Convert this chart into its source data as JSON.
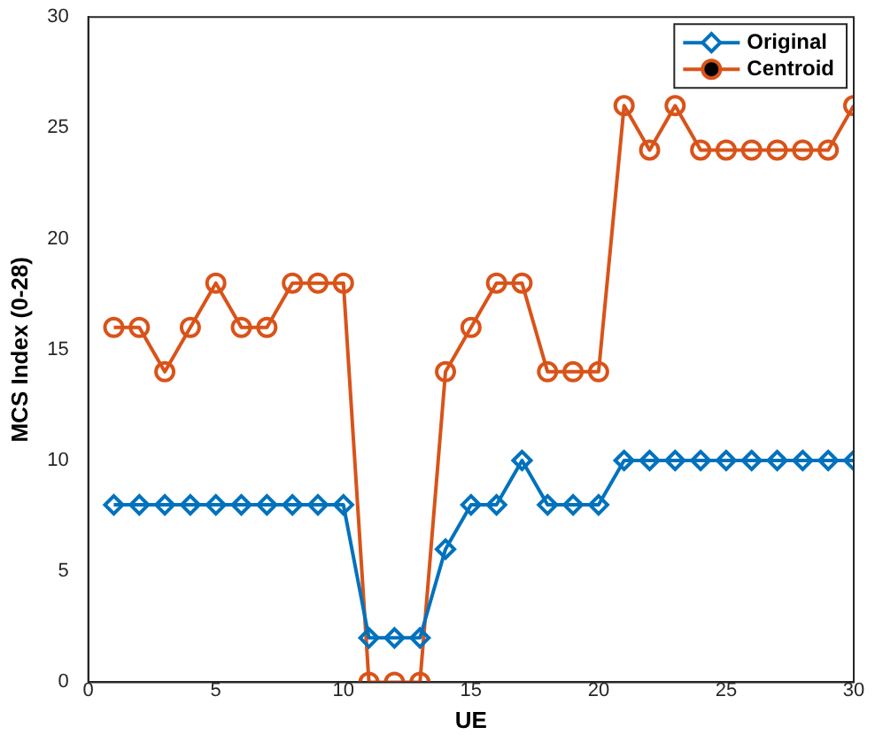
{
  "chart_data": {
    "type": "line",
    "xlabel": "UE",
    "ylabel": "MCS Index (0-28)",
    "x": [
      1,
      2,
      3,
      4,
      5,
      6,
      7,
      8,
      9,
      10,
      11,
      12,
      13,
      14,
      15,
      16,
      17,
      18,
      19,
      20,
      21,
      22,
      23,
      24,
      25,
      26,
      27,
      28,
      29,
      30
    ],
    "series": [
      {
        "name": "Original",
        "color": "#0072bd",
        "marker": "diamond",
        "values": [
          8,
          8,
          8,
          8,
          8,
          8,
          8,
          8,
          8,
          8,
          2,
          2,
          2,
          6,
          8,
          8,
          10,
          8,
          8,
          8,
          10,
          10,
          10,
          10,
          10,
          10,
          10,
          10,
          10,
          10
        ]
      },
      {
        "name": "Centroid",
        "color": "#d95319",
        "marker": "circle",
        "values": [
          16,
          16,
          14,
          16,
          18,
          16,
          16,
          18,
          18,
          18,
          0,
          0,
          0,
          14,
          16,
          18,
          18,
          14,
          14,
          14,
          26,
          24,
          26,
          24,
          24,
          24,
          24,
          24,
          24,
          26
        ]
      }
    ],
    "xlim": [
      0,
      30
    ],
    "xticks": [
      0,
      5,
      10,
      15,
      20,
      25,
      30
    ],
    "ylim": [
      0,
      30
    ],
    "yticks": [
      0,
      5,
      10,
      15,
      20,
      25,
      30
    ],
    "grid": false,
    "legend": "top right",
    "line_style": "solid"
  }
}
